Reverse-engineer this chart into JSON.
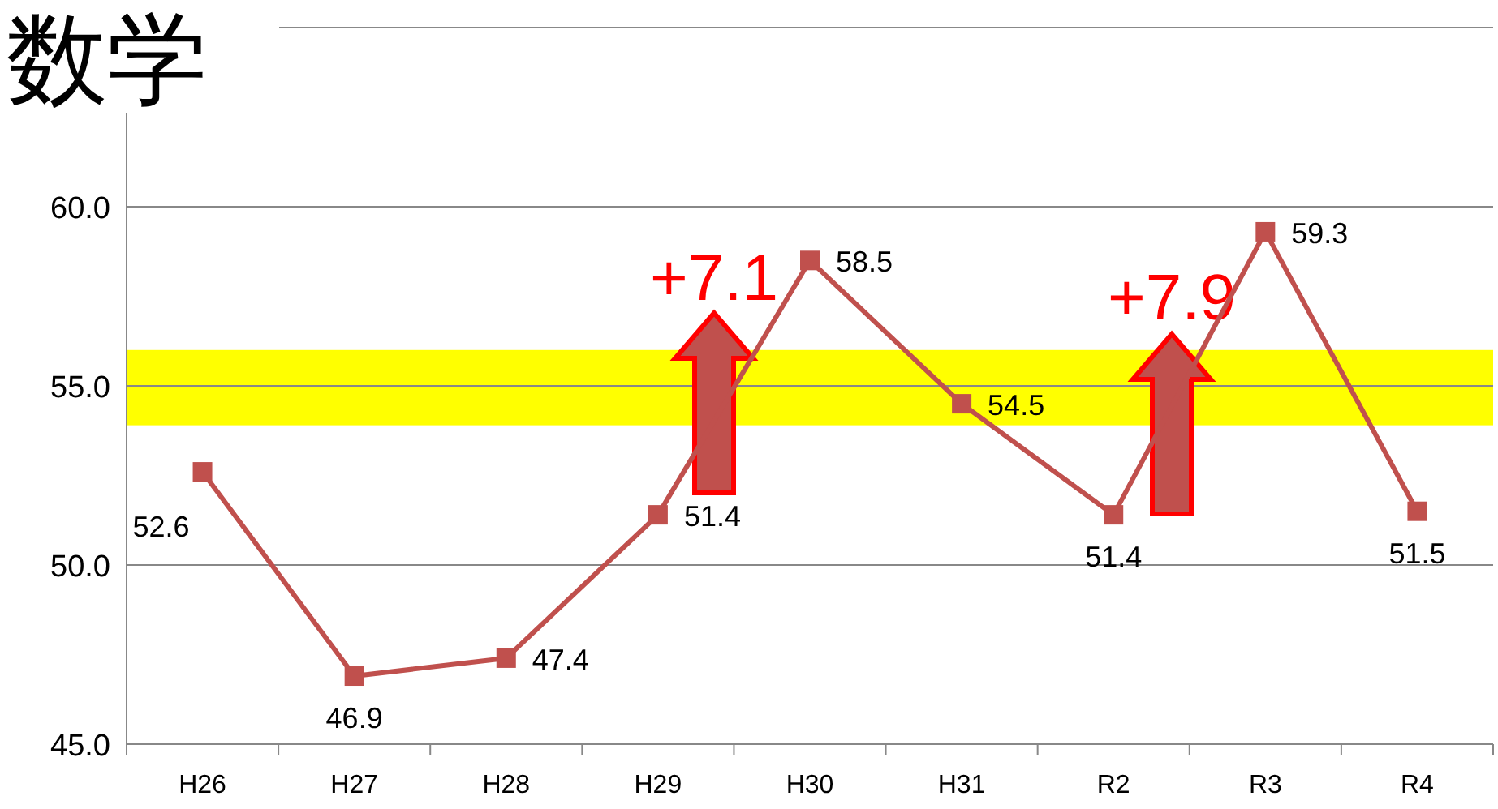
{
  "chart_data": {
    "type": "line",
    "title": "数学",
    "categories": [
      "H26",
      "H27",
      "H28",
      "H29",
      "H30",
      "H31",
      "R2",
      "R3",
      "R4"
    ],
    "series": [
      {
        "color": "#c0504d",
        "values": [
          52.6,
          46.9,
          47.4,
          51.4,
          58.5,
          54.5,
          51.4,
          59.3,
          51.5
        ]
      }
    ],
    "ylim": [
      45,
      65
    ],
    "yticks": [
      {
        "value": 45,
        "label": "45.0"
      },
      {
        "value": 50,
        "label": "50.0"
      },
      {
        "value": 55,
        "label": "55.0"
      },
      {
        "value": 60,
        "label": "60.0"
      },
      {
        "value": 65,
        "label": null
      }
    ],
    "bands": [
      {
        "axis": "y",
        "from": 53.9,
        "to": 56.0,
        "color": "#ffff00"
      }
    ],
    "annotations": [
      "+7.1",
      "+7.9"
    ],
    "data_labels": true,
    "grid": "y",
    "marker": "square",
    "line_style": "solid"
  }
}
